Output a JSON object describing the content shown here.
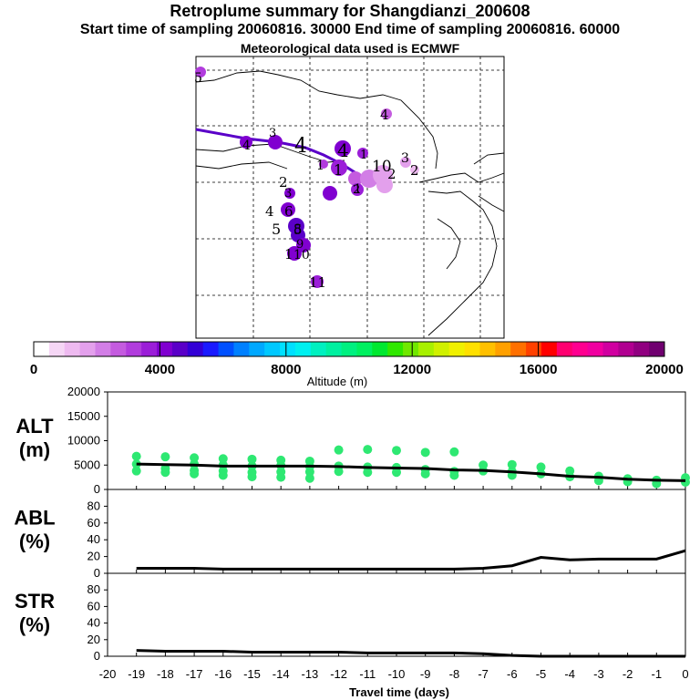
{
  "title": "Retroplume summary for Shangdianzi_200608",
  "subtitle": "Start time of sampling 20060816. 30000     End time of sampling 20060816. 60000",
  "met_line": "Meteorological data used is ECMWF",
  "colors": {
    "trajectory": "#8a2be2",
    "alt_points": "#2ee872",
    "line": "#000000"
  },
  "chart_data": [
    {
      "type": "map",
      "name": "retroplume map",
      "trajectory_labels": [
        "5",
        "4",
        "3",
        "4",
        "4",
        "1",
        "1",
        "2",
        "1",
        "10",
        "3",
        "2",
        "1",
        "4",
        "5",
        "2",
        "3",
        "4",
        "6",
        "5",
        "8",
        "1",
        "9",
        "10",
        "11",
        "2"
      ],
      "colorbar": {
        "title": "Altitude (m)",
        "range": [
          0,
          20000
        ],
        "ticks": [
          "0",
          "4000",
          "8000",
          "12000",
          "16000",
          "20000"
        ],
        "colors": [
          "#ffffff",
          "#f5d6f5",
          "#eebaf0",
          "#e3a0ec",
          "#d27ee6",
          "#c45bdf",
          "#b13cdd",
          "#9b1ed8",
          "#8000d0",
          "#5a00c8",
          "#3300d6",
          "#1a1aff",
          "#0050ff",
          "#0080ff",
          "#00a8ff",
          "#00c8ff",
          "#00e0ff",
          "#00f0f0",
          "#00f0c0",
          "#00f0a0",
          "#00f080",
          "#00f060",
          "#00e830",
          "#30e800",
          "#70e800",
          "#a8f000",
          "#d0f000",
          "#f0f000",
          "#ffe000",
          "#ffc000",
          "#ffa000",
          "#ff7000",
          "#ff4000",
          "#ff0000",
          "#ff0070",
          "#ff0090",
          "#f000a0",
          "#d000a0",
          "#b00090",
          "#900080",
          "#700070"
        ]
      }
    },
    {
      "type": "scatter",
      "name": "ALT",
      "ylabel": [
        "ALT",
        "(m)"
      ],
      "ylim": [
        0,
        20000
      ],
      "yticks": [
        0,
        5000,
        10000,
        15000,
        20000
      ],
      "x": [
        -19,
        -18,
        -17,
        -16,
        -15,
        -14,
        -13,
        -12,
        -11,
        -10,
        -9,
        -8,
        -7,
        -6,
        -5,
        -4,
        -3,
        -2,
        -1,
        0
      ],
      "mean_line": [
        5200,
        5100,
        5000,
        4800,
        4800,
        4800,
        4800,
        4700,
        4500,
        4400,
        4300,
        4000,
        3900,
        3600,
        3200,
        2700,
        2500,
        2100,
        1900,
        1800
      ],
      "points": [
        [
          -19,
          6800
        ],
        [
          -19,
          5200
        ],
        [
          -19,
          3800
        ],
        [
          -18,
          6700
        ],
        [
          -18,
          4300
        ],
        [
          -18,
          3500
        ],
        [
          -17,
          6500
        ],
        [
          -17,
          5200
        ],
        [
          -17,
          3900
        ],
        [
          -17,
          3200
        ],
        [
          -16,
          6300
        ],
        [
          -16,
          5000
        ],
        [
          -16,
          3800
        ],
        [
          -16,
          2900
        ],
        [
          -15,
          6200
        ],
        [
          -15,
          4800
        ],
        [
          -15,
          3500
        ],
        [
          -15,
          2600
        ],
        [
          -14,
          6000
        ],
        [
          -14,
          4900
        ],
        [
          -14,
          3600
        ],
        [
          -14,
          2500
        ],
        [
          -13,
          5800
        ],
        [
          -13,
          4700
        ],
        [
          -13,
          3600
        ],
        [
          -13,
          2300
        ],
        [
          -12,
          8100
        ],
        [
          -12,
          4800
        ],
        [
          -12,
          3700
        ],
        [
          -11,
          8200
        ],
        [
          -11,
          4600
        ],
        [
          -11,
          3500
        ],
        [
          -10,
          8000
        ],
        [
          -10,
          4500
        ],
        [
          -10,
          3500
        ],
        [
          -9,
          7600
        ],
        [
          -9,
          4100
        ],
        [
          -9,
          3200
        ],
        [
          -8,
          7700
        ],
        [
          -8,
          3700
        ],
        [
          -8,
          2900
        ],
        [
          -7,
          5000
        ],
        [
          -7,
          3800
        ],
        [
          -6,
          5100
        ],
        [
          -6,
          3700
        ],
        [
          -6,
          2900
        ],
        [
          -5,
          4600
        ],
        [
          -5,
          3200
        ],
        [
          -4,
          3800
        ],
        [
          -4,
          2600
        ],
        [
          -3,
          2700
        ],
        [
          -3,
          1800
        ],
        [
          -2,
          2200
        ],
        [
          -2,
          1600
        ],
        [
          -1,
          1900
        ],
        [
          -1,
          1200
        ],
        [
          0,
          2400
        ],
        [
          0,
          1500
        ]
      ]
    },
    {
      "type": "line",
      "name": "ABL",
      "ylabel": [
        "ABL",
        "(%)"
      ],
      "ylim": [
        0,
        100
      ],
      "yticks": [
        0,
        20,
        40,
        60,
        80
      ],
      "x": [
        -19,
        -18,
        -17,
        -16,
        -15,
        -14,
        -13,
        -12,
        -11,
        -10,
        -9,
        -8,
        -7,
        -6,
        -5,
        -4,
        -3,
        -2,
        -1,
        0
      ],
      "values": [
        6,
        6,
        6,
        5,
        5,
        5,
        5,
        5,
        5,
        5,
        5,
        5,
        6,
        9,
        19,
        16,
        17,
        17,
        17,
        27
      ]
    },
    {
      "type": "line",
      "name": "STR",
      "ylabel": [
        "STR",
        "(%)"
      ],
      "ylim": [
        0,
        100
      ],
      "yticks": [
        0,
        20,
        40,
        60,
        80
      ],
      "x": [
        -19,
        -18,
        -17,
        -16,
        -15,
        -14,
        -13,
        -12,
        -11,
        -10,
        -9,
        -8,
        -7,
        -6,
        -5,
        -4,
        -3,
        -2,
        -1,
        0
      ],
      "values": [
        7,
        6,
        6,
        6,
        5,
        5,
        5,
        5,
        4,
        4,
        4,
        4,
        3,
        1,
        0,
        0,
        0,
        0,
        0,
        0
      ]
    },
    {
      "type": "axis",
      "name": "time axis",
      "xlabel": "Travel time (days)",
      "xlim": [
        -20,
        0
      ],
      "xticks": [
        "-20",
        "-19",
        "-18",
        "-17",
        "-16",
        "-15",
        "-14",
        "-13",
        "-12",
        "-11",
        "-10",
        "-9",
        "-8",
        "-7",
        "-6",
        "-5",
        "-4",
        "-3",
        "-2",
        "-1",
        "0"
      ]
    }
  ]
}
